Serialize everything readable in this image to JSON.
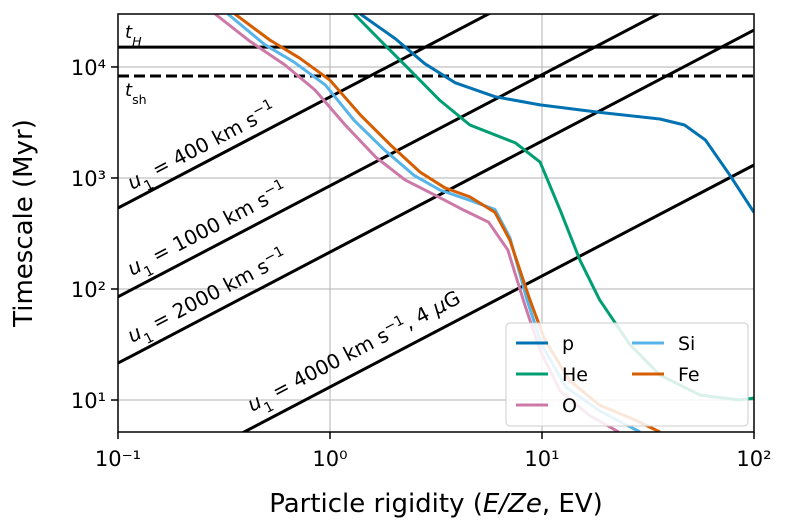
{
  "chart_data": {
    "type": "line",
    "log_x": true,
    "log_y": true,
    "grid": true,
    "xlim": [
      0.1,
      100
    ],
    "ylim": [
      5.15,
      30000
    ],
    "xticks": [
      {
        "value": 0.1,
        "label": "10⁻¹"
      },
      {
        "value": 1,
        "label": "10⁰"
      },
      {
        "value": 10,
        "label": "10¹"
      },
      {
        "value": 100,
        "label": "10²"
      }
    ],
    "yticks": [
      {
        "value": 10,
        "label": "10¹"
      },
      {
        "value": 100,
        "label": "10²"
      },
      {
        "value": 1000,
        "label": "10³"
      },
      {
        "value": 10000,
        "label": "10⁴"
      }
    ],
    "x_label": [
      {
        "text": "Particle rigidity ("
      },
      {
        "text": "E/Ze",
        "style": "italic"
      },
      {
        "text": ", EV)"
      }
    ],
    "y_label": "Timescale (Myr)",
    "legend": {
      "position": "lower right",
      "columns": 2
    },
    "series": [
      {
        "name": "p",
        "color": "#0072b2",
        "x": [
          1.39,
          2.03,
          2.8,
          3.9,
          6.0,
          9.8,
          18.7,
          36,
          47,
          59,
          77,
          100
        ],
        "values": [
          30000,
          18000,
          10700,
          7200,
          5400,
          4550,
          3900,
          3400,
          3000,
          2200,
          1060,
          490
        ]
      },
      {
        "name": "He",
        "color": "#009e73",
        "x": [
          1.3,
          1.72,
          2.38,
          3.3,
          4.57,
          7.5,
          9.8,
          12.2,
          15.1,
          18.7,
          26,
          36,
          55.6,
          85,
          100
        ],
        "values": [
          30000,
          17500,
          9400,
          5000,
          3000,
          2070,
          1390,
          510,
          182,
          80,
          31.5,
          16.8,
          11.1,
          10,
          10.4
        ]
      },
      {
        "name": "O",
        "color": "#cc79a7",
        "x": [
          0.287,
          0.42,
          0.61,
          0.85,
          1.18,
          1.64,
          2.26,
          3.13,
          4.3,
          5.6,
          6.9,
          8.3,
          9.8,
          12.2,
          16.7,
          23
        ],
        "values": [
          30000,
          17000,
          10500,
          6200,
          3000,
          1550,
          960,
          700,
          510,
          400,
          225,
          72,
          28,
          12,
          7.3,
          5.15
        ]
      },
      {
        "name": "Si",
        "color": "#56b4e9",
        "x": [
          0.33,
          0.49,
          0.68,
          0.95,
          1.3,
          1.8,
          2.5,
          3.3,
          4.57,
          6.0,
          7.06,
          8.5,
          10,
          13,
          18.7,
          29
        ],
        "values": [
          30000,
          16000,
          11000,
          6900,
          3300,
          1800,
          1050,
          780,
          630,
          520,
          290,
          80,
          31,
          13,
          8,
          5.15
        ]
      },
      {
        "name": "Fe",
        "color": "#d55e00",
        "x": [
          0.356,
          0.52,
          0.72,
          1.0,
          1.39,
          1.92,
          2.66,
          3.48,
          4.57,
          6.0,
          7.06,
          8.77,
          10.3,
          13.5,
          18.7,
          27.5,
          36
        ],
        "values": [
          30000,
          17500,
          12000,
          7600,
          3700,
          2000,
          1130,
          815,
          675,
          490,
          275,
          80,
          35,
          15,
          9,
          6.6,
          5.15
        ]
      }
    ],
    "hlines": [
      {
        "value": 15100,
        "style": "solid",
        "label": [
          {
            "text": "t",
            "style": "italic"
          },
          {
            "text": "H",
            "style": "sub-italic"
          }
        ]
      },
      {
        "value": 8300,
        "style": "dashed",
        "label": [
          {
            "text": "t",
            "style": "italic"
          },
          {
            "text": "sh",
            "style": "sub"
          }
        ]
      }
    ],
    "reference_lines": [
      {
        "x": [
          0.1,
          100
        ],
        "values": [
          537,
          537000
        ],
        "label": [
          {
            "text": "u",
            "style": "italic"
          },
          {
            "text": "1",
            "style": "sub"
          },
          {
            "text": " = 400 km s"
          },
          {
            "text": "−1",
            "style": "sup"
          }
        ]
      },
      {
        "x": [
          0.1,
          100
        ],
        "values": [
          85,
          85000
        ],
        "label": [
          {
            "text": "u",
            "style": "italic"
          },
          {
            "text": "1",
            "style": "sub"
          },
          {
            "text": " = 1000 km s"
          },
          {
            "text": "−1",
            "style": "sup"
          }
        ]
      },
      {
        "x": [
          0.1,
          100
        ],
        "values": [
          21.5,
          21500
        ],
        "label": [
          {
            "text": "u",
            "style": "italic"
          },
          {
            "text": "1",
            "style": "sub"
          },
          {
            "text": " = 2000 km s"
          },
          {
            "text": "−1",
            "style": "sup"
          }
        ]
      },
      {
        "x": [
          0.1,
          100
        ],
        "values": [
          1.31,
          1310
        ],
        "label": [
          {
            "text": "u",
            "style": "italic"
          },
          {
            "text": "1",
            "style": "sub"
          },
          {
            "text": " = 4000 km s"
          },
          {
            "text": "−1",
            "style": "sup"
          },
          {
            "text": ",  4 "
          },
          {
            "text": "μ",
            "style": "italic"
          },
          {
            "text": "G"
          }
        ]
      }
    ]
  }
}
